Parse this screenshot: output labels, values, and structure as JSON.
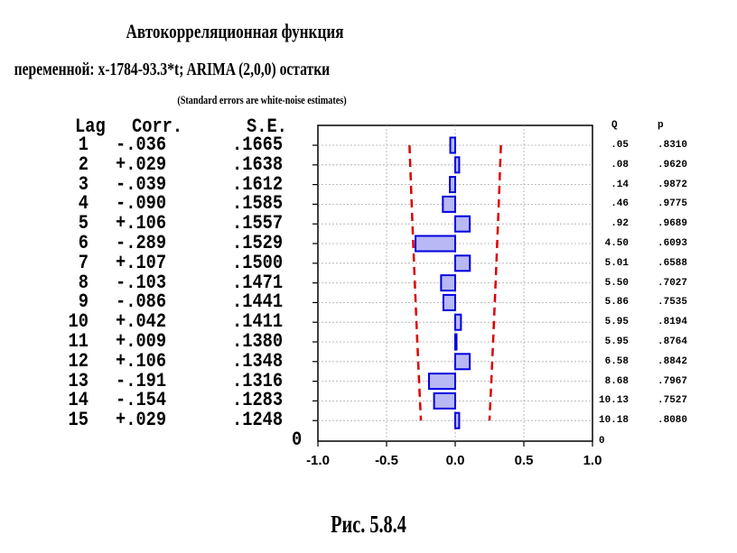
{
  "titles": {
    "line1": "Автокорреляционная функция",
    "line2": "переменной: x-1784-93.3*t; ARIMA (2,0,0) остатки",
    "line3": "(Standard errors are white-noise estimates)"
  },
  "caption": "Рис. 5.8.4",
  "headers": {
    "lag": "Lag",
    "corr": "Corr.",
    "se": "S.E.",
    "q": "Q",
    "p": "p"
  },
  "zero_label": "0",
  "zero_q": "0",
  "chart_data": {
    "type": "bar",
    "orientation": "horizontal",
    "lags": [
      "1",
      "2",
      "3",
      "4",
      "5",
      "6",
      "7",
      "8",
      "9",
      "10",
      "11",
      "12",
      "13",
      "14",
      "15"
    ],
    "corr_text": [
      "-.036",
      "+.029",
      "-.039",
      "-.090",
      "+.106",
      "-.289",
      "+.107",
      "-.103",
      "-.086",
      "+.042",
      "+.009",
      "+.106",
      "-.191",
      "-.154",
      "+.029"
    ],
    "values": [
      -0.036,
      0.029,
      -0.039,
      -0.09,
      0.106,
      -0.289,
      0.107,
      -0.103,
      -0.086,
      0.042,
      0.009,
      0.106,
      -0.191,
      -0.154,
      0.029
    ],
    "se_text": [
      ".1665",
      ".1638",
      ".1612",
      ".1585",
      ".1557",
      ".1529",
      ".1500",
      ".1471",
      ".1441",
      ".1411",
      ".1380",
      ".1348",
      ".1316",
      ".1283",
      ".1248"
    ],
    "se": [
      0.1665,
      0.1638,
      0.1612,
      0.1585,
      0.1557,
      0.1529,
      0.15,
      0.1471,
      0.1441,
      0.1411,
      0.138,
      0.1348,
      0.1316,
      0.1283,
      0.1248
    ],
    "q_text": [
      ".05",
      ".08",
      ".14",
      ".46",
      ".92",
      "4.50",
      "5.01",
      "5.50",
      "5.86",
      "5.95",
      "5.95",
      "6.58",
      "8.68",
      "10.13",
      "10.18"
    ],
    "p_text": [
      ".8310",
      ".9620",
      ".9872",
      ".9775",
      ".9689",
      ".6093",
      ".6588",
      ".7027",
      ".7535",
      ".8194",
      ".8764",
      ".8842",
      ".7967",
      ".7527",
      ".8080"
    ],
    "xlim": [
      -1.0,
      1.0
    ],
    "xticks": [
      "-1.0",
      "-0.5",
      "0.0",
      "0.5",
      "1.0"
    ],
    "tick_values": [
      -1.0,
      -0.5,
      0.0,
      0.5,
      1.0
    ],
    "confidence_multiplier": 2,
    "grid": true,
    "colors": {
      "bar_fill": "#b8b8f4",
      "bar_stroke": "#0000dd",
      "conf_line": "#dd0000",
      "grid": "#aaaaaa"
    }
  }
}
